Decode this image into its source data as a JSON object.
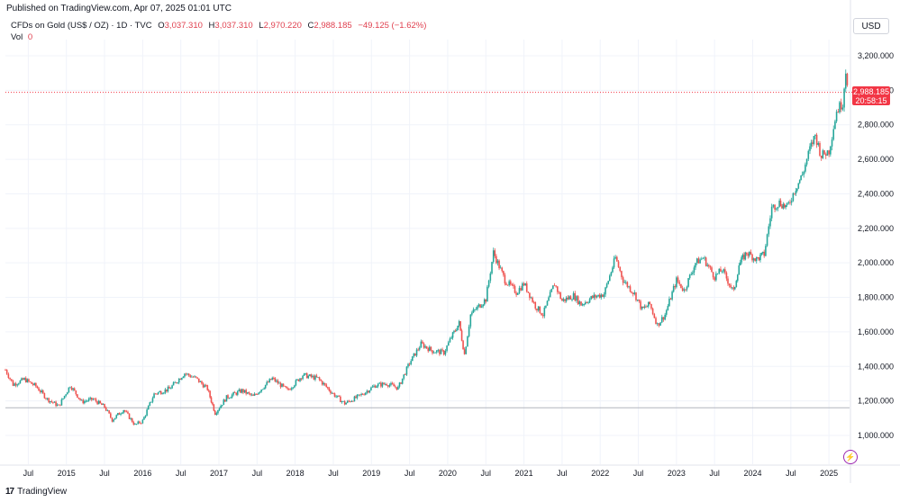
{
  "header": {
    "published": "Published on TradingView.com, Apr 07, 2025 01:01 UTC"
  },
  "legend": {
    "symbol": "CFDs on Gold (US$ / OZ) · 1D · TVC",
    "open_key": "O",
    "open": "3,037.310",
    "high_key": "H",
    "high": "3,037.310",
    "low_key": "L",
    "low": "2,970.220",
    "close_key": "C",
    "close": "2,988.185",
    "change": "−49.125 (−1.62%)",
    "vol_key": "Vol",
    "vol": "0"
  },
  "currency": "USD",
  "last_price": {
    "price": "2,988.185",
    "countdown": "20:58:15"
  },
  "footer": {
    "brand": "TradingView"
  },
  "colors": {
    "up": "#26a69a",
    "down": "#ef5350",
    "badge": "#f23645",
    "grid": "#f0f3fa",
    "support": "#b2b5be"
  },
  "chart_data": {
    "type": "candlestick",
    "y_ticks": [
      "3,200.000",
      "3,000.000",
      "2,800.000",
      "2,600.000",
      "2,400.000",
      "2,200.000",
      "2,000.000",
      "1,800.000",
      "1,600.000",
      "1,400.000",
      "1,200.000",
      "1,000.000"
    ],
    "ylim": [
      900,
      3300
    ],
    "x_ticks": [
      {
        "t": 2014.5,
        "label": "Jul"
      },
      {
        "t": 2015.0,
        "label": "2015"
      },
      {
        "t": 2015.5,
        "label": "Jul"
      },
      {
        "t": 2016.0,
        "label": "2016"
      },
      {
        "t": 2016.5,
        "label": "Jul"
      },
      {
        "t": 2017.0,
        "label": "2017"
      },
      {
        "t": 2017.5,
        "label": "Jul"
      },
      {
        "t": 2018.0,
        "label": "2018"
      },
      {
        "t": 2018.5,
        "label": "Jul"
      },
      {
        "t": 2019.0,
        "label": "2019"
      },
      {
        "t": 2019.5,
        "label": "Jul"
      },
      {
        "t": 2020.0,
        "label": "2020"
      },
      {
        "t": 2020.5,
        "label": "Jul"
      },
      {
        "t": 2021.0,
        "label": "2021"
      },
      {
        "t": 2021.5,
        "label": "Jul"
      },
      {
        "t": 2022.0,
        "label": "2022"
      },
      {
        "t": 2022.5,
        "label": "Jul"
      },
      {
        "t": 2023.0,
        "label": "2023"
      },
      {
        "t": 2023.5,
        "label": "Jul"
      },
      {
        "t": 2024.0,
        "label": "2024"
      },
      {
        "t": 2024.5,
        "label": "Jul"
      },
      {
        "t": 2025.0,
        "label": "2025"
      }
    ],
    "xlim": [
      2014.2,
      2025.27
    ],
    "horizontal_lines": [
      {
        "price": 1160,
        "style": "solid"
      },
      {
        "price": 2988.185,
        "style": "dotted"
      }
    ],
    "closes_path": [
      {
        "t": 2014.2,
        "p": 1380
      },
      {
        "t": 2014.3,
        "p": 1295
      },
      {
        "t": 2014.45,
        "p": 1325
      },
      {
        "t": 2014.6,
        "p": 1285
      },
      {
        "t": 2014.75,
        "p": 1210
      },
      {
        "t": 2014.9,
        "p": 1170
      },
      {
        "t": 2015.05,
        "p": 1290
      },
      {
        "t": 2015.2,
        "p": 1195
      },
      {
        "t": 2015.35,
        "p": 1210
      },
      {
        "t": 2015.5,
        "p": 1165
      },
      {
        "t": 2015.6,
        "p": 1090
      },
      {
        "t": 2015.75,
        "p": 1150
      },
      {
        "t": 2015.9,
        "p": 1060
      },
      {
        "t": 2016.0,
        "p": 1085
      },
      {
        "t": 2016.15,
        "p": 1240
      },
      {
        "t": 2016.35,
        "p": 1270
      },
      {
        "t": 2016.55,
        "p": 1360
      },
      {
        "t": 2016.7,
        "p": 1330
      },
      {
        "t": 2016.85,
        "p": 1270
      },
      {
        "t": 2016.95,
        "p": 1130
      },
      {
        "t": 2017.1,
        "p": 1220
      },
      {
        "t": 2017.3,
        "p": 1260
      },
      {
        "t": 2017.45,
        "p": 1225
      },
      {
        "t": 2017.7,
        "p": 1330
      },
      {
        "t": 2017.9,
        "p": 1260
      },
      {
        "t": 2018.1,
        "p": 1350
      },
      {
        "t": 2018.3,
        "p": 1330
      },
      {
        "t": 2018.5,
        "p": 1240
      },
      {
        "t": 2018.65,
        "p": 1185
      },
      {
        "t": 2018.85,
        "p": 1230
      },
      {
        "t": 2019.05,
        "p": 1290
      },
      {
        "t": 2019.2,
        "p": 1300
      },
      {
        "t": 2019.35,
        "p": 1275
      },
      {
        "t": 2019.5,
        "p": 1420
      },
      {
        "t": 2019.65,
        "p": 1530
      },
      {
        "t": 2019.8,
        "p": 1490
      },
      {
        "t": 2019.95,
        "p": 1480
      },
      {
        "t": 2020.05,
        "p": 1570
      },
      {
        "t": 2020.15,
        "p": 1650
      },
      {
        "t": 2020.22,
        "p": 1470
      },
      {
        "t": 2020.3,
        "p": 1700
      },
      {
        "t": 2020.5,
        "p": 1790
      },
      {
        "t": 2020.6,
        "p": 2060
      },
      {
        "t": 2020.75,
        "p": 1900
      },
      {
        "t": 2020.9,
        "p": 1830
      },
      {
        "t": 2021.0,
        "p": 1880
      },
      {
        "t": 2021.15,
        "p": 1750
      },
      {
        "t": 2021.25,
        "p": 1700
      },
      {
        "t": 2021.4,
        "p": 1880
      },
      {
        "t": 2021.5,
        "p": 1780
      },
      {
        "t": 2021.65,
        "p": 1810
      },
      {
        "t": 2021.75,
        "p": 1760
      },
      {
        "t": 2021.9,
        "p": 1800
      },
      {
        "t": 2022.05,
        "p": 1820
      },
      {
        "t": 2022.2,
        "p": 2030
      },
      {
        "t": 2022.3,
        "p": 1900
      },
      {
        "t": 2022.45,
        "p": 1820
      },
      {
        "t": 2022.55,
        "p": 1730
      },
      {
        "t": 2022.65,
        "p": 1760
      },
      {
        "t": 2022.75,
        "p": 1640
      },
      {
        "t": 2022.85,
        "p": 1700
      },
      {
        "t": 2023.0,
        "p": 1900
      },
      {
        "t": 2023.1,
        "p": 1840
      },
      {
        "t": 2023.25,
        "p": 2000
      },
      {
        "t": 2023.35,
        "p": 2030
      },
      {
        "t": 2023.5,
        "p": 1920
      },
      {
        "t": 2023.6,
        "p": 1960
      },
      {
        "t": 2023.75,
        "p": 1830
      },
      {
        "t": 2023.82,
        "p": 1990
      },
      {
        "t": 2023.92,
        "p": 2060
      },
      {
        "t": 2024.05,
        "p": 2020
      },
      {
        "t": 2024.15,
        "p": 2050
      },
      {
        "t": 2024.25,
        "p": 2320
      },
      {
        "t": 2024.35,
        "p": 2350
      },
      {
        "t": 2024.45,
        "p": 2320
      },
      {
        "t": 2024.55,
        "p": 2420
      },
      {
        "t": 2024.65,
        "p": 2510
      },
      {
        "t": 2024.75,
        "p": 2660
      },
      {
        "t": 2024.82,
        "p": 2740
      },
      {
        "t": 2024.9,
        "p": 2620
      },
      {
        "t": 2025.0,
        "p": 2650
      },
      {
        "t": 2025.1,
        "p": 2880
      },
      {
        "t": 2025.18,
        "p": 2930
      },
      {
        "t": 2025.22,
        "p": 3120
      },
      {
        "t": 2025.26,
        "p": 2988
      }
    ]
  }
}
